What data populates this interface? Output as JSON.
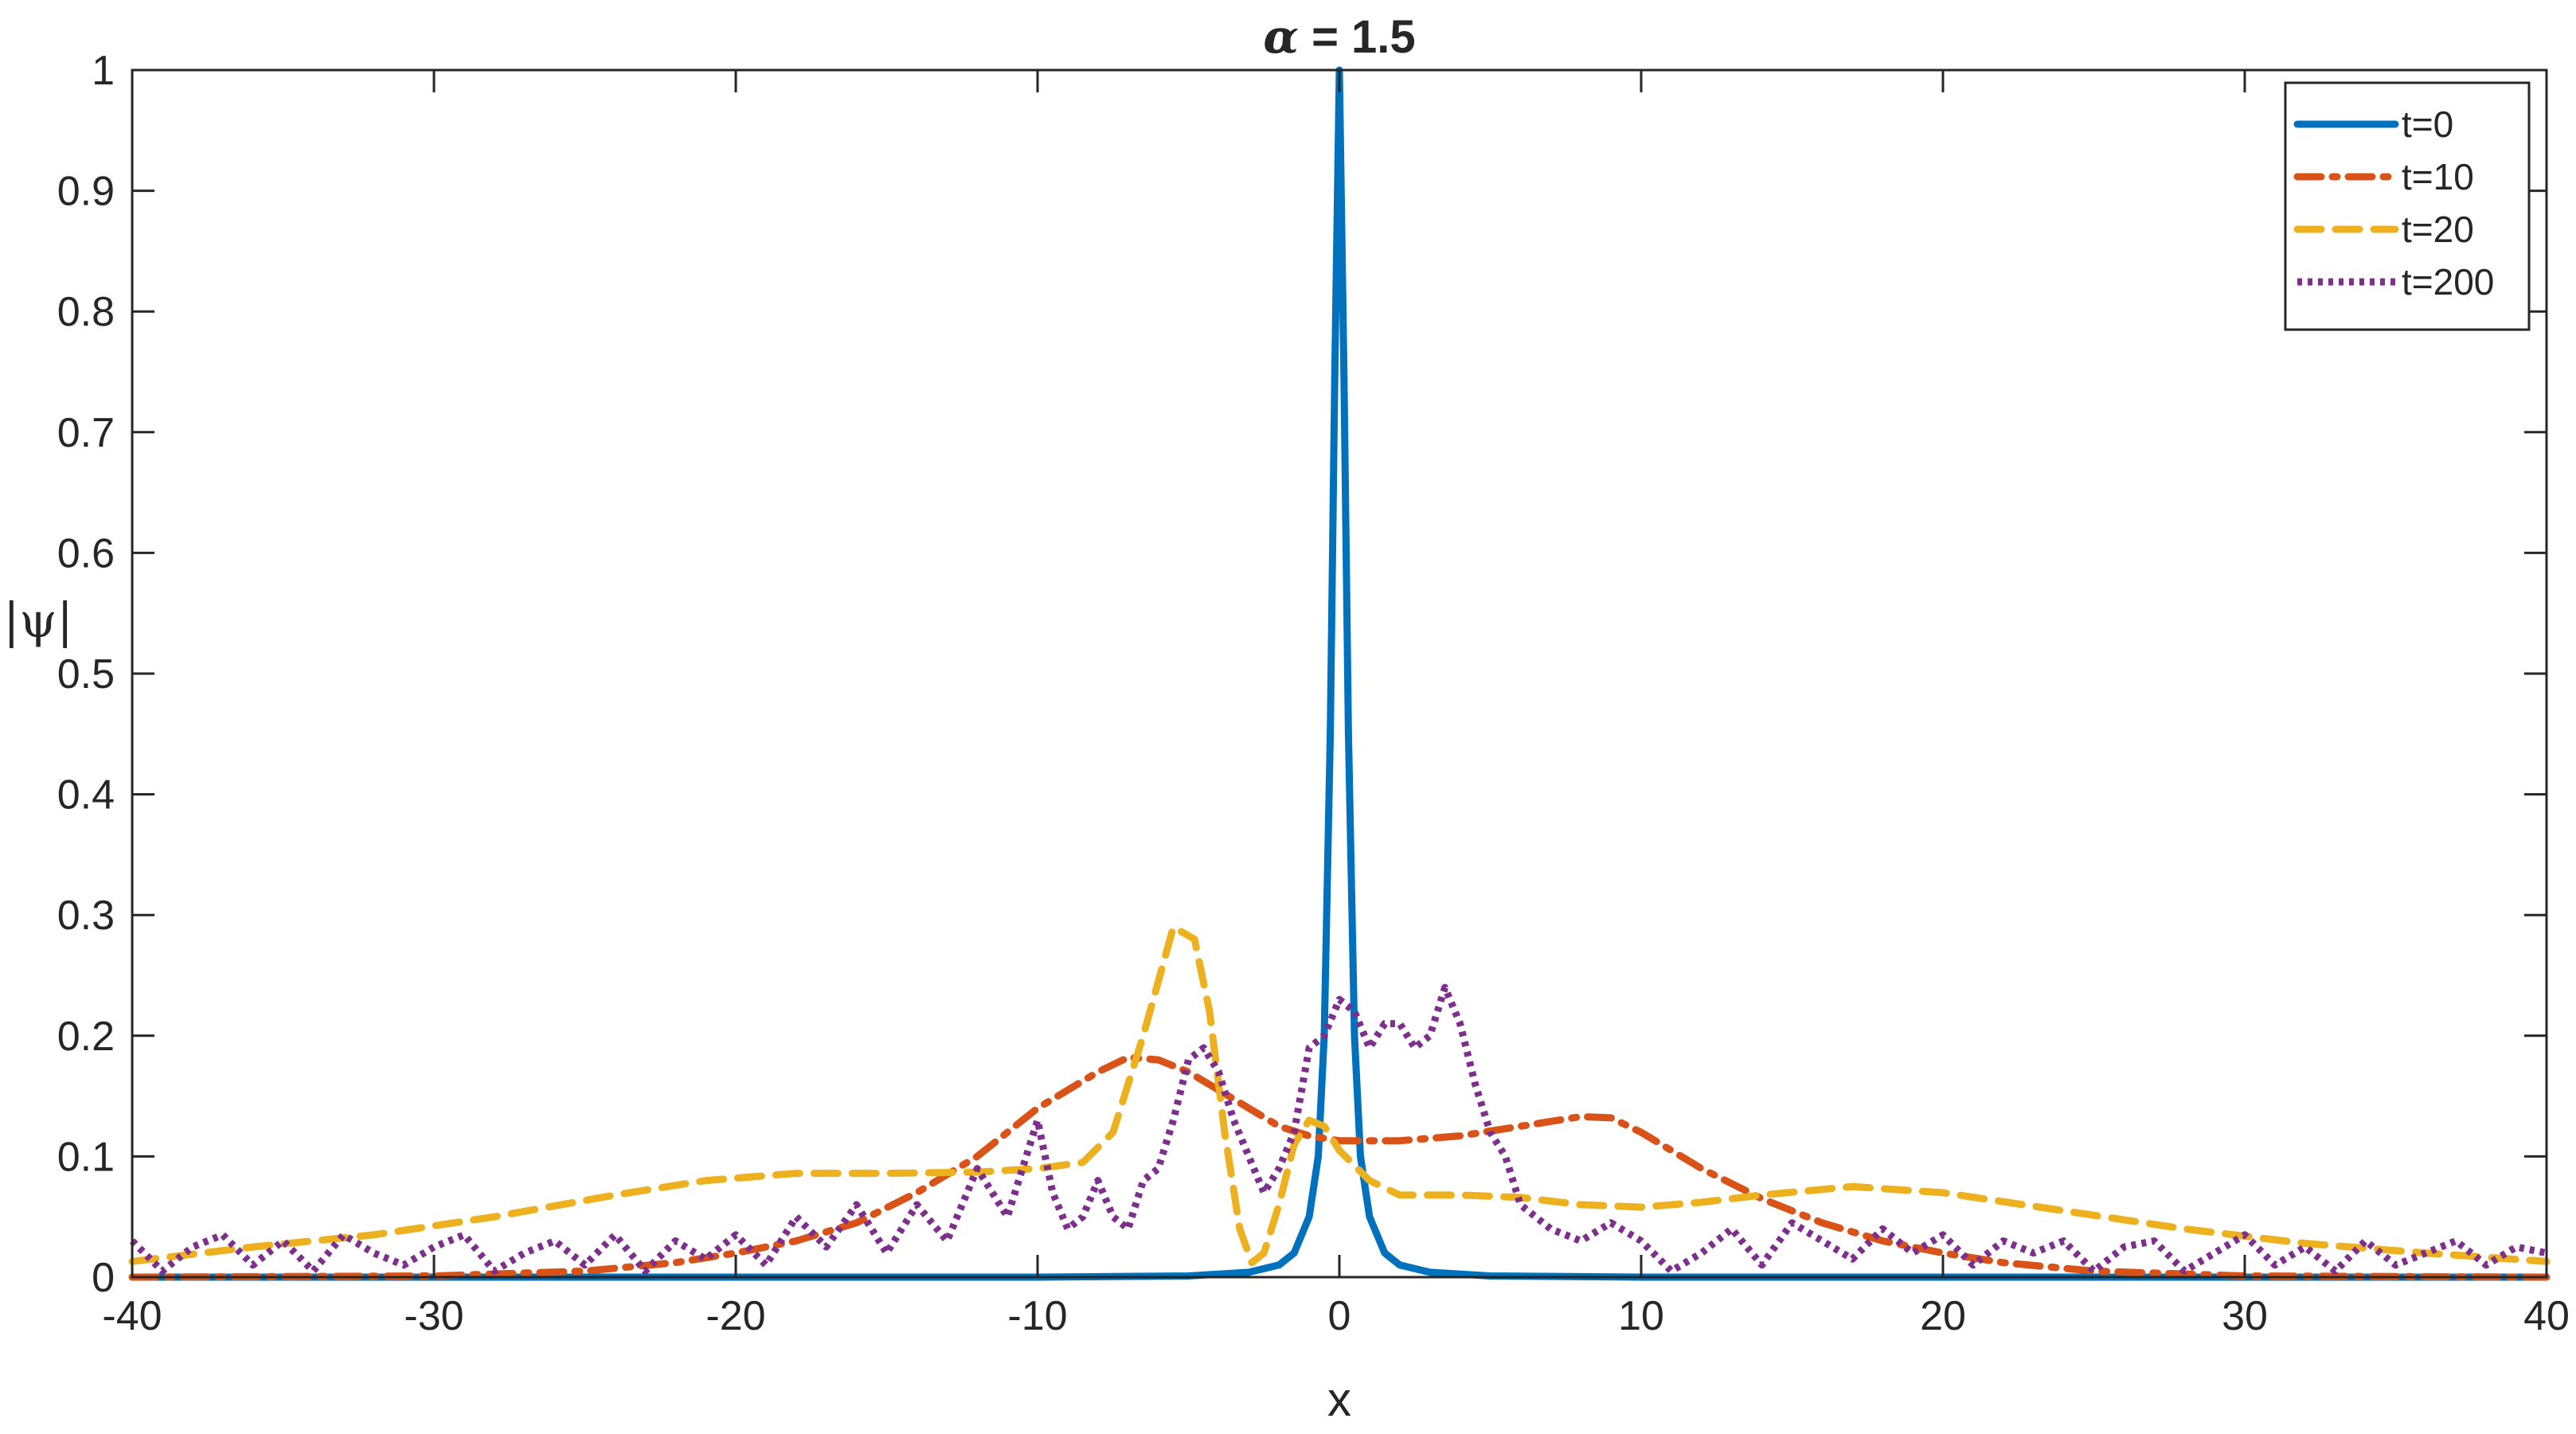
{
  "chart_data": {
    "type": "line",
    "title": {
      "symbol": "α",
      "text": " = 1.5"
    },
    "xlabel": "x",
    "ylabel": "|ψ|",
    "xlim": [
      -40,
      40
    ],
    "ylim": [
      0,
      1
    ],
    "xticks": [
      -40,
      -30,
      -20,
      -10,
      0,
      10,
      20,
      30,
      40
    ],
    "xtick_labels": [
      "-40",
      "-30",
      "-20",
      "-10",
      "0",
      "10",
      "20",
      "30",
      "40"
    ],
    "yticks": [
      0,
      0.1,
      0.2,
      0.3,
      0.4,
      0.5,
      0.6,
      0.7,
      0.8,
      0.9,
      1
    ],
    "ytick_labels": [
      "0",
      "0.1",
      "0.2",
      "0.3",
      "0.4",
      "0.5",
      "0.6",
      "0.7",
      "0.8",
      "0.9",
      "1"
    ],
    "grid": false,
    "box": true,
    "legend_position": "top-right",
    "series": [
      {
        "name": "t=0",
        "color": "#0072BD",
        "style": "solid",
        "points": [
          [
            -40,
            0
          ],
          [
            -10,
            0
          ],
          [
            -5,
            0.001
          ],
          [
            -3,
            0.004
          ],
          [
            -2,
            0.01
          ],
          [
            -1.5,
            0.02
          ],
          [
            -1,
            0.05
          ],
          [
            -0.7,
            0.1
          ],
          [
            -0.5,
            0.2
          ],
          [
            -0.3,
            0.45
          ],
          [
            -0.15,
            0.75
          ],
          [
            0,
            1
          ],
          [
            0.15,
            0.75
          ],
          [
            0.3,
            0.45
          ],
          [
            0.5,
            0.2
          ],
          [
            0.7,
            0.1
          ],
          [
            1,
            0.05
          ],
          [
            1.5,
            0.02
          ],
          [
            2,
            0.01
          ],
          [
            3,
            0.004
          ],
          [
            5,
            0.001
          ],
          [
            10,
            0
          ],
          [
            40,
            0
          ]
        ]
      },
      {
        "name": "t=10",
        "color": "#D95319",
        "style": "dashdot",
        "points": [
          [
            -40,
            0
          ],
          [
            -30,
            0.001
          ],
          [
            -25,
            0.005
          ],
          [
            -22,
            0.012
          ],
          [
            -20,
            0.02
          ],
          [
            -18,
            0.03
          ],
          [
            -16,
            0.045
          ],
          [
            -14,
            0.07
          ],
          [
            -12,
            0.1
          ],
          [
            -10,
            0.14
          ],
          [
            -8,
            0.17
          ],
          [
            -7,
            0.182
          ],
          [
            -6,
            0.18
          ],
          [
            -5,
            0.17
          ],
          [
            -4,
            0.155
          ],
          [
            -3,
            0.14
          ],
          [
            -2,
            0.125
          ],
          [
            -1,
            0.117
          ],
          [
            0,
            0.113
          ],
          [
            2,
            0.113
          ],
          [
            4,
            0.117
          ],
          [
            6,
            0.125
          ],
          [
            8,
            0.133
          ],
          [
            9,
            0.132
          ],
          [
            10,
            0.12
          ],
          [
            12,
            0.09
          ],
          [
            14,
            0.065
          ],
          [
            16,
            0.045
          ],
          [
            18,
            0.03
          ],
          [
            20,
            0.02
          ],
          [
            22,
            0.012
          ],
          [
            25,
            0.005
          ],
          [
            30,
            0.001
          ],
          [
            40,
            0
          ]
        ]
      },
      {
        "name": "t=20",
        "color": "#EDB120",
        "style": "dashed",
        "points": [
          [
            -40,
            0.013
          ],
          [
            -36,
            0.025
          ],
          [
            -32,
            0.035
          ],
          [
            -28,
            0.05
          ],
          [
            -24,
            0.068
          ],
          [
            -21,
            0.08
          ],
          [
            -18,
            0.086
          ],
          [
            -15,
            0.086
          ],
          [
            -12,
            0.087
          ],
          [
            -10,
            0.09
          ],
          [
            -8.5,
            0.095
          ],
          [
            -7.5,
            0.12
          ],
          [
            -6.5,
            0.2
          ],
          [
            -5.5,
            0.29
          ],
          [
            -4.8,
            0.28
          ],
          [
            -4.3,
            0.22
          ],
          [
            -3.8,
            0.12
          ],
          [
            -3.3,
            0.04
          ],
          [
            -2.9,
            0.012
          ],
          [
            -2.5,
            0.02
          ],
          [
            -2,
            0.06
          ],
          [
            -1.5,
            0.11
          ],
          [
            -1,
            0.13
          ],
          [
            -0.5,
            0.125
          ],
          [
            0,
            0.105
          ],
          [
            1,
            0.08
          ],
          [
            2,
            0.068
          ],
          [
            4,
            0.068
          ],
          [
            6,
            0.066
          ],
          [
            8,
            0.06
          ],
          [
            10,
            0.058
          ],
          [
            12,
            0.062
          ],
          [
            14,
            0.068
          ],
          [
            17,
            0.075
          ],
          [
            20,
            0.07
          ],
          [
            24,
            0.055
          ],
          [
            28,
            0.04
          ],
          [
            32,
            0.028
          ],
          [
            36,
            0.02
          ],
          [
            40,
            0.013
          ]
        ]
      },
      {
        "name": "t=200",
        "color": "#7E2F8E",
        "style": "dotted",
        "points": [
          [
            -40,
            0.03
          ],
          [
            -39,
            0.005
          ],
          [
            -38,
            0.025
          ],
          [
            -37,
            0.035
          ],
          [
            -36,
            0.01
          ],
          [
            -35,
            0.03
          ],
          [
            -34,
            0.005
          ],
          [
            -33,
            0.035
          ],
          [
            -32,
            0.02
          ],
          [
            -31,
            0.01
          ],
          [
            -30,
            0.025
          ],
          [
            -29,
            0.035
          ],
          [
            -28,
            0.005
          ],
          [
            -27,
            0.02
          ],
          [
            -26,
            0.03
          ],
          [
            -25,
            0.01
          ],
          [
            -24,
            0.035
          ],
          [
            -23,
            0.005
          ],
          [
            -22,
            0.03
          ],
          [
            -21,
            0.015
          ],
          [
            -20,
            0.035
          ],
          [
            -19,
            0.01
          ],
          [
            -18,
            0.05
          ],
          [
            -17,
            0.025
          ],
          [
            -16,
            0.06
          ],
          [
            -15,
            0.02
          ],
          [
            -14,
            0.06
          ],
          [
            -13,
            0.03
          ],
          [
            -12,
            0.09
          ],
          [
            -11,
            0.05
          ],
          [
            -10,
            0.13
          ],
          [
            -9.5,
            0.07
          ],
          [
            -9,
            0.04
          ],
          [
            -8.5,
            0.05
          ],
          [
            -8,
            0.08
          ],
          [
            -7.5,
            0.05
          ],
          [
            -7,
            0.04
          ],
          [
            -6.5,
            0.08
          ],
          [
            -6,
            0.09
          ],
          [
            -5.5,
            0.13
          ],
          [
            -5,
            0.18
          ],
          [
            -4.5,
            0.19
          ],
          [
            -4,
            0.17
          ],
          [
            -3.5,
            0.13
          ],
          [
            -3,
            0.1
          ],
          [
            -2.5,
            0.07
          ],
          [
            -2,
            0.09
          ],
          [
            -1.5,
            0.12
          ],
          [
            -1,
            0.19
          ],
          [
            -0.5,
            0.2
          ],
          [
            0,
            0.23
          ],
          [
            0.5,
            0.22
          ],
          [
            1,
            0.19
          ],
          [
            1.5,
            0.21
          ],
          [
            2,
            0.21
          ],
          [
            2.5,
            0.19
          ],
          [
            3,
            0.2
          ],
          [
            3.5,
            0.24
          ],
          [
            4,
            0.21
          ],
          [
            4.5,
            0.16
          ],
          [
            5,
            0.12
          ],
          [
            5.5,
            0.1
          ],
          [
            6,
            0.06
          ],
          [
            7,
            0.04
          ],
          [
            8,
            0.03
          ],
          [
            9,
            0.045
          ],
          [
            10,
            0.03
          ],
          [
            11,
            0.005
          ],
          [
            12,
            0.02
          ],
          [
            13,
            0.04
          ],
          [
            14,
            0.01
          ],
          [
            15,
            0.045
          ],
          [
            16,
            0.03
          ],
          [
            17,
            0.015
          ],
          [
            18,
            0.04
          ],
          [
            19,
            0.02
          ],
          [
            20,
            0.035
          ],
          [
            21,
            0.01
          ],
          [
            22,
            0.03
          ],
          [
            23,
            0.02
          ],
          [
            24,
            0.03
          ],
          [
            25,
            0.005
          ],
          [
            26,
            0.025
          ],
          [
            27,
            0.03
          ],
          [
            28,
            0.005
          ],
          [
            29,
            0.02
          ],
          [
            30,
            0.035
          ],
          [
            31,
            0.01
          ],
          [
            32,
            0.025
          ],
          [
            33,
            0.005
          ],
          [
            34,
            0.03
          ],
          [
            35,
            0.01
          ],
          [
            36,
            0.02
          ],
          [
            37,
            0.03
          ],
          [
            38,
            0.01
          ],
          [
            39,
            0.025
          ],
          [
            40,
            0.02
          ]
        ]
      }
    ]
  }
}
